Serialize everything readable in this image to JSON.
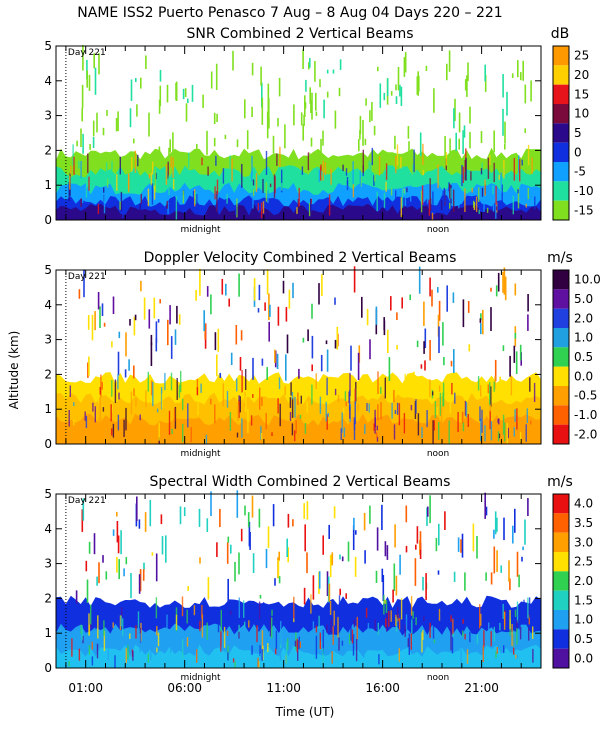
{
  "header": {
    "title": "NAME ISS2 Puerto Penasco   7 Aug –  8 Aug 04 Days 220 – 221"
  },
  "shared": {
    "ylabel": "Altitude (km)",
    "xlabel": "Time (UT)",
    "yticks": [
      "0",
      "1",
      "2",
      "3",
      "4",
      "5"
    ],
    "xticks": [
      {
        "label": "01:00",
        "hour": 1
      },
      {
        "label": "06:00",
        "hour": 6
      },
      {
        "label": "11:00",
        "hour": 11
      },
      {
        "label": "16:00",
        "hour": 16
      },
      {
        "label": "21:00",
        "hour": 21
      }
    ],
    "midnight_label": "midnight",
    "noon_label": "noon",
    "day_marker_label": "Day 221"
  },
  "chart_data": [
    {
      "type": "heatmap",
      "title": "SNR Combined 2 Vertical Beams",
      "unit": "dB",
      "ylim": [
        0,
        5
      ],
      "xlim_hours": [
        -0.5,
        24
      ],
      "colorbar": {
        "labels": [
          "25",
          "20",
          "15",
          "10",
          "5",
          "0",
          "-5",
          "-10",
          "-15"
        ],
        "colors": [
          "#ff9900",
          "#ffd000",
          "#e8141c",
          "#7a0a3c",
          "#2a0a8a",
          "#1030e0",
          "#10a0ff",
          "#20e0a0",
          "#80e020"
        ]
      },
      "layers_km": [
        {
          "color": "#80e020",
          "top": 1.9
        },
        {
          "color": "#20e0a0",
          "top": 1.4
        },
        {
          "color": "#10a0ff",
          "top": 0.9
        },
        {
          "color": "#1030e0",
          "top": 0.55
        },
        {
          "color": "#2a0a8a",
          "top": 0.3
        }
      ]
    },
    {
      "type": "heatmap",
      "title": "Doppler Velocity Combined 2 Vertical Beams",
      "unit": "m/s",
      "ylim": [
        0,
        5
      ],
      "xlim_hours": [
        -0.5,
        24
      ],
      "colorbar": {
        "labels": [
          "10.0",
          "5.0",
          "2.0",
          "1.0",
          "0.5",
          "0.0",
          "-0.5",
          "-1.0",
          "-2.0"
        ],
        "colors": [
          "#300040",
          "#6010a0",
          "#2040e0",
          "#20a0e0",
          "#30d050",
          "#ffe000",
          "#ffa000",
          "#ff6000",
          "#e81010"
        ]
      },
      "layers_km": [
        {
          "color": "#ffe000",
          "top": 1.9
        },
        {
          "color": "#ffc000",
          "top": 1.3
        },
        {
          "color": "#ffa000",
          "top": 0.7
        }
      ]
    },
    {
      "type": "heatmap",
      "title": "Spectral Width Combined 2 Vertical Beams",
      "unit": "m/s",
      "ylim": [
        0,
        5
      ],
      "xlim_hours": [
        -0.5,
        24
      ],
      "colorbar": {
        "labels": [
          "4.0",
          "3.5",
          "3.0",
          "2.5",
          "2.0",
          "1.5",
          "1.0",
          "0.5",
          "0.0"
        ],
        "colors": [
          "#e81010",
          "#ff6000",
          "#ffa000",
          "#ffe000",
          "#30d050",
          "#20d0c0",
          "#20a0f0",
          "#1030e0",
          "#5010a0"
        ]
      },
      "layers_km": [
        {
          "color": "#1030e0",
          "top": 1.9
        },
        {
          "color": "#20a0f0",
          "top": 1.1
        },
        {
          "color": "#20c0f0",
          "top": 0.5
        }
      ]
    }
  ]
}
